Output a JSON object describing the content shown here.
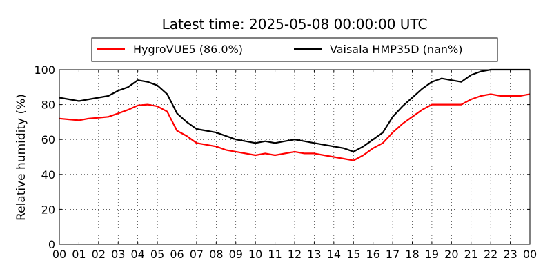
{
  "chart_data": {
    "type": "line",
    "title": "Latest time: 2025-05-08 00:00:00 UTC",
    "xlabel": "",
    "ylabel": "Relative humidity (%)",
    "ylim": [
      0,
      100
    ],
    "xlim": [
      0,
      24
    ],
    "yticks": [
      "0",
      "20",
      "40",
      "60",
      "80",
      "100"
    ],
    "xticks": [
      "00",
      "01",
      "02",
      "03",
      "04",
      "05",
      "06",
      "07",
      "08",
      "09",
      "10",
      "11",
      "12",
      "13",
      "14",
      "15",
      "16",
      "17",
      "18",
      "19",
      "20",
      "21",
      "22",
      "23",
      "00"
    ],
    "grid": true,
    "legend_position": "top-center",
    "series": [
      {
        "name": "HygroVUE5 (86.0%)",
        "color": "#ff0000",
        "x": [
          0,
          0.5,
          1,
          1.5,
          2,
          2.5,
          3,
          3.5,
          4,
          4.5,
          5,
          5.5,
          6,
          6.5,
          7,
          7.5,
          8,
          8.5,
          9,
          9.5,
          10,
          10.5,
          11,
          11.5,
          12,
          12.5,
          13,
          13.5,
          14,
          14.5,
          15,
          15.5,
          16,
          16.5,
          17,
          17.5,
          18,
          18.5,
          19,
          19.5,
          20,
          20.5,
          21,
          21.5,
          22,
          22.5,
          23,
          23.5,
          24
        ],
        "values": [
          72,
          71.5,
          71,
          72,
          72.5,
          73,
          75,
          77,
          79.5,
          80,
          79,
          76,
          65,
          62,
          58,
          57,
          56,
          54,
          53,
          52,
          51,
          52,
          51,
          52,
          53,
          52,
          52,
          51,
          50,
          49,
          48,
          51,
          55,
          58,
          64,
          69,
          73,
          77,
          80,
          80,
          80,
          80,
          83,
          85,
          86,
          85,
          85,
          85,
          86
        ]
      },
      {
        "name": "Vaisala HMP35D (nan%)",
        "color": "#000000",
        "x": [
          0,
          0.5,
          1,
          1.5,
          2,
          2.5,
          3,
          3.5,
          4,
          4.5,
          5,
          5.5,
          6,
          6.5,
          7,
          7.5,
          8,
          8.5,
          9,
          9.5,
          10,
          10.5,
          11,
          11.5,
          12,
          12.5,
          13,
          13.5,
          14,
          14.5,
          15,
          15.5,
          16,
          16.5,
          17,
          17.5,
          18,
          18.5,
          19,
          19.5,
          20,
          20.5,
          21,
          21.5,
          22,
          22.5,
          23,
          23.5,
          24
        ],
        "values": [
          84,
          83,
          82,
          83,
          84,
          85,
          88,
          90,
          94,
          93,
          91,
          86,
          75,
          70,
          66,
          65,
          64,
          62,
          60,
          59,
          58,
          59,
          58,
          59,
          60,
          59,
          58,
          57,
          56,
          55,
          53,
          56,
          60,
          64,
          73,
          79,
          84,
          89,
          93,
          95,
          94,
          93,
          97,
          99,
          100,
          100,
          100,
          100,
          100
        ]
      }
    ]
  }
}
